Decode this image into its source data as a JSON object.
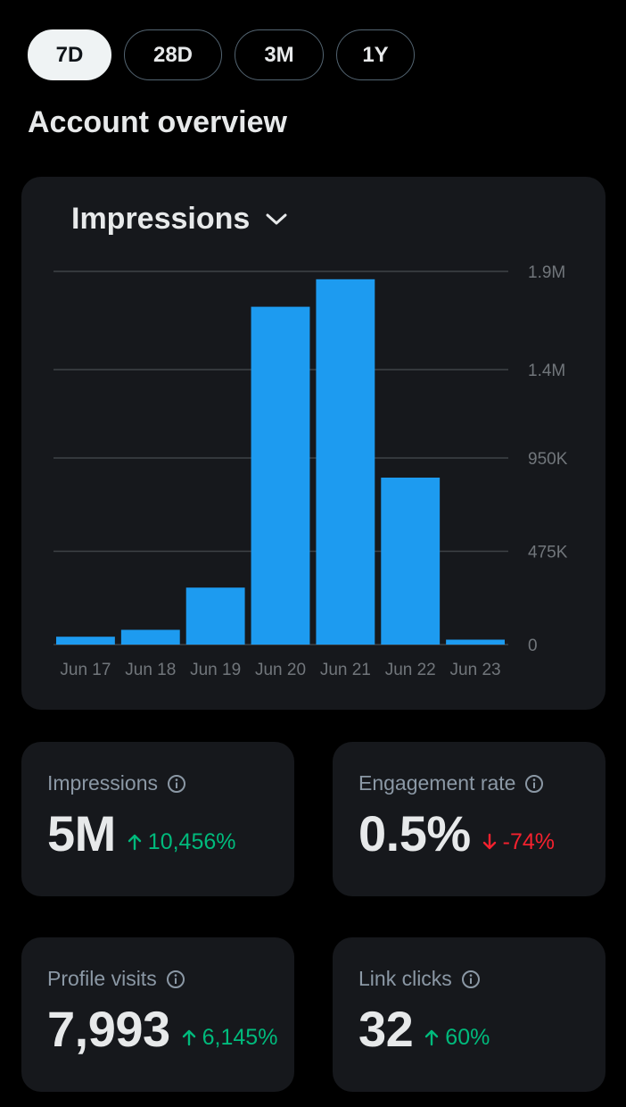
{
  "range_tabs": [
    {
      "label": "7D",
      "active": true
    },
    {
      "label": "28D",
      "active": false
    },
    {
      "label": "3M",
      "active": false
    },
    {
      "label": "1Y",
      "active": false
    }
  ],
  "section_title": "Account overview",
  "chart": {
    "metric_label": "Impressions",
    "metric_icon": "chevron-down-icon"
  },
  "chart_data": {
    "type": "bar",
    "categories": [
      "Jun 17",
      "Jun 18",
      "Jun 19",
      "Jun 20",
      "Jun 21",
      "Jun 22",
      "Jun 23"
    ],
    "values": [
      40000,
      75000,
      290000,
      1720000,
      1860000,
      850000,
      25000
    ],
    "yticks": [
      0,
      475000,
      950000,
      1400000,
      1900000
    ],
    "ytick_labels": [
      "0",
      "475K",
      "950K",
      "1.4M",
      "1.9M"
    ],
    "ylim": [
      0,
      1900000
    ],
    "grid": true,
    "bar_color": "#1d9bf0"
  },
  "stats": [
    {
      "label": "Impressions",
      "value": "5M",
      "change": "10,456%",
      "direction": "up"
    },
    {
      "label": "Engagement rate",
      "value": "0.5%",
      "change": "-74%",
      "direction": "down"
    },
    {
      "label": "Profile visits",
      "value": "7,993",
      "change": "6,145%",
      "direction": "up"
    },
    {
      "label": "Link clicks",
      "value": "32",
      "change": "60%",
      "direction": "up"
    }
  ],
  "colors": {
    "background": "#000000",
    "card": "#16181c",
    "accent": "#1d9bf0",
    "positive": "#00ba7c",
    "negative": "#f4212e"
  }
}
